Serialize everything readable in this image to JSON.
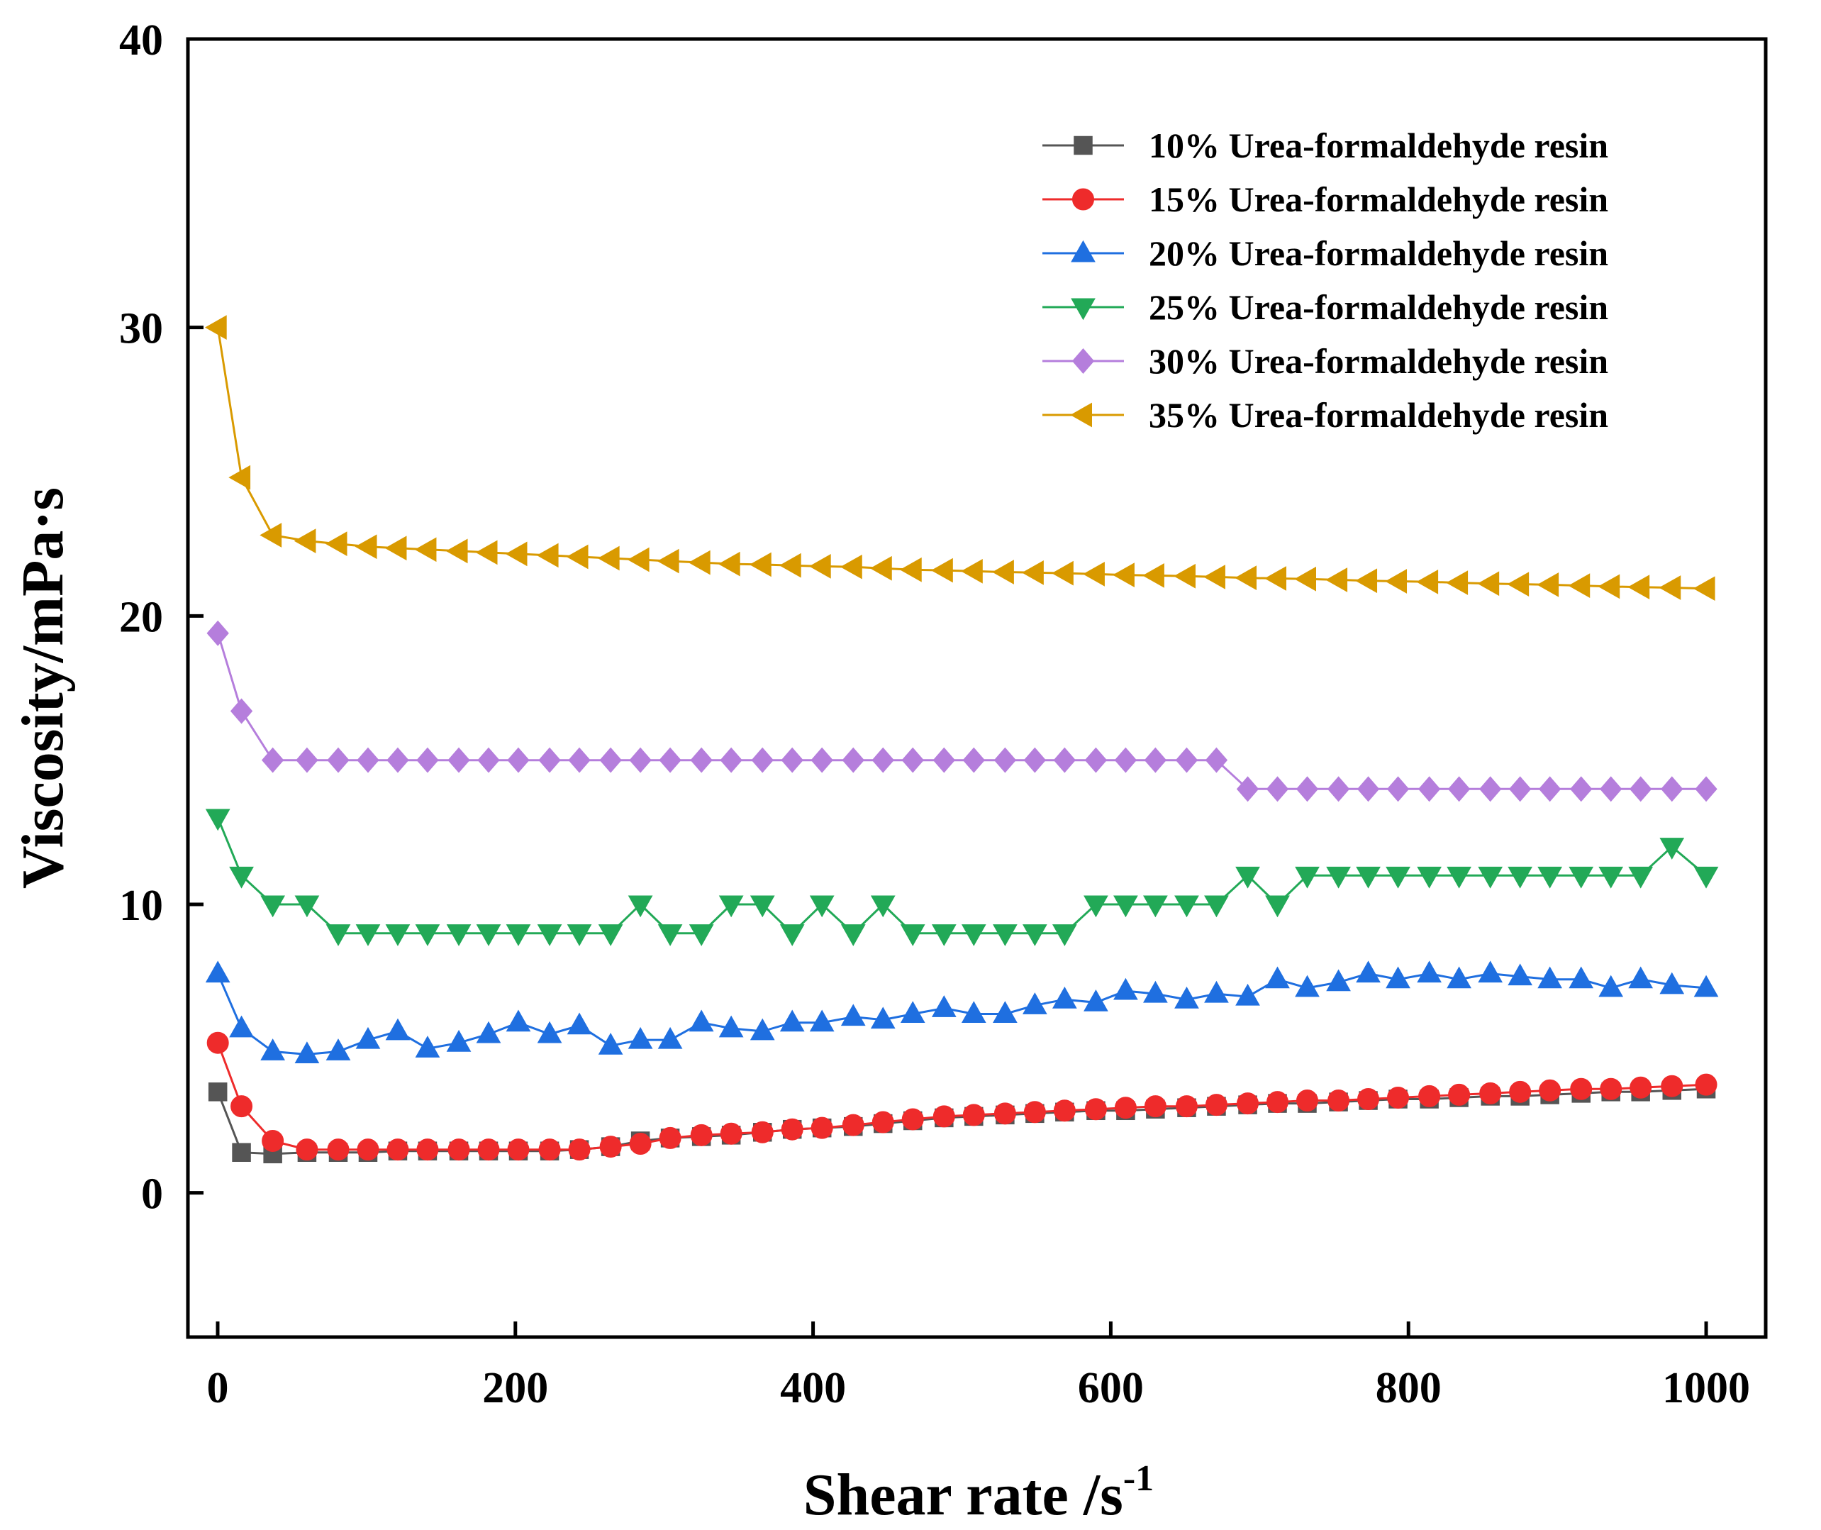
{
  "chart_data": {
    "type": "line",
    "title": "",
    "xlabel": "Shear rate /s",
    "xlabel_superscript": "-1",
    "ylabel": "Viscosity/mPa·s",
    "xlim": [
      -20,
      1040
    ],
    "ylim": [
      -5,
      40
    ],
    "xticks": [
      0,
      200,
      400,
      600,
      800,
      1000
    ],
    "xtick_labels": [
      "0",
      "200",
      "400",
      "600",
      "800",
      "1000"
    ],
    "yticks": [
      0,
      10,
      20,
      30,
      40
    ],
    "ytick_labels": [
      "0",
      "10",
      "20",
      "30",
      "40"
    ],
    "grid": false,
    "legend_position": "top-right",
    "x": [
      0.1,
      16,
      37,
      60,
      81,
      101,
      121,
      141,
      162,
      182,
      202,
      223,
      243,
      264,
      284,
      304,
      325,
      345,
      366,
      386,
      406,
      427,
      447,
      467,
      488,
      508,
      529,
      549,
      569,
      590,
      610,
      630,
      651,
      671,
      692,
      712,
      732,
      753,
      773,
      793,
      814,
      834,
      855,
      875,
      895,
      916,
      936,
      956,
      977,
      1000
    ],
    "series": [
      {
        "name": "10% Urea-formaldehyde resin",
        "color": "#555555",
        "marker": "square",
        "values": [
          3.5,
          1.4,
          1.35,
          1.4,
          1.4,
          1.4,
          1.45,
          1.45,
          1.45,
          1.45,
          1.45,
          1.45,
          1.5,
          1.6,
          1.8,
          1.9,
          1.95,
          2.0,
          2.1,
          2.2,
          2.25,
          2.3,
          2.4,
          2.5,
          2.6,
          2.65,
          2.7,
          2.75,
          2.8,
          2.85,
          2.85,
          2.9,
          2.95,
          3.0,
          3.05,
          3.1,
          3.1,
          3.15,
          3.2,
          3.25,
          3.25,
          3.3,
          3.35,
          3.35,
          3.4,
          3.45,
          3.5,
          3.5,
          3.55,
          3.6
        ]
      },
      {
        "name": "15% Urea-formaldehyde resin",
        "color": "#ee2b2b",
        "marker": "circle",
        "values": [
          5.2,
          3.0,
          1.8,
          1.5,
          1.5,
          1.5,
          1.5,
          1.5,
          1.5,
          1.5,
          1.5,
          1.5,
          1.5,
          1.6,
          1.7,
          1.9,
          2.0,
          2.05,
          2.1,
          2.2,
          2.25,
          2.35,
          2.45,
          2.55,
          2.65,
          2.7,
          2.75,
          2.8,
          2.85,
          2.9,
          2.95,
          3.0,
          3.0,
          3.05,
          3.1,
          3.15,
          3.2,
          3.2,
          3.25,
          3.3,
          3.35,
          3.4,
          3.45,
          3.5,
          3.55,
          3.6,
          3.6,
          3.65,
          3.7,
          3.75
        ]
      },
      {
        "name": "20% Urea-formaldehyde resin",
        "color": "#1f6fe0",
        "marker": "triangle-up",
        "values": [
          7.6,
          5.7,
          4.9,
          4.8,
          4.9,
          5.3,
          5.6,
          5.0,
          5.2,
          5.5,
          5.9,
          5.5,
          5.8,
          5.1,
          5.3,
          5.3,
          5.9,
          5.7,
          5.6,
          5.9,
          5.9,
          6.1,
          6.0,
          6.2,
          6.4,
          6.2,
          6.2,
          6.5,
          6.7,
          6.6,
          7.0,
          6.9,
          6.7,
          6.9,
          6.8,
          7.4,
          7.1,
          7.3,
          7.6,
          7.4,
          7.6,
          7.4,
          7.6,
          7.5,
          7.4,
          7.4,
          7.1,
          7.4,
          7.2,
          7.1
        ]
      },
      {
        "name": "25% Urea-formaldehyde resin",
        "color": "#22a957",
        "marker": "triangle-down",
        "values": [
          13.0,
          11.0,
          10.0,
          10.0,
          9.0,
          9.0,
          9.0,
          9.0,
          9.0,
          9.0,
          9.0,
          9.0,
          9.0,
          9.0,
          10.0,
          9.0,
          9.0,
          10.0,
          10.0,
          9.0,
          10.0,
          9.0,
          10.0,
          9.0,
          9.0,
          9.0,
          9.0,
          9.0,
          9.0,
          10.0,
          10.0,
          10.0,
          10.0,
          10.0,
          11.0,
          10.0,
          11.0,
          11.0,
          11.0,
          11.0,
          11.0,
          11.0,
          11.0,
          11.0,
          11.0,
          11.0,
          11.0,
          11.0,
          12.0,
          11.0
        ]
      },
      {
        "name": "30% Urea-formaldehyde resin",
        "color": "#b57edc",
        "marker": "diamond",
        "values": [
          19.4,
          16.7,
          15.0,
          15.0,
          15.0,
          15.0,
          15.0,
          15.0,
          15.0,
          15.0,
          15.0,
          15.0,
          15.0,
          15.0,
          15.0,
          15.0,
          15.0,
          15.0,
          15.0,
          15.0,
          15.0,
          15.0,
          15.0,
          15.0,
          15.0,
          15.0,
          15.0,
          15.0,
          15.0,
          15.0,
          15.0,
          15.0,
          15.0,
          15.0,
          14.0,
          14.0,
          14.0,
          14.0,
          14.0,
          14.0,
          14.0,
          14.0,
          14.0,
          14.0,
          14.0,
          14.0,
          14.0,
          14.0,
          14.0,
          14.0
        ]
      },
      {
        "name": "35% Urea-formaldehyde resin",
        "color": "#d99a00",
        "marker": "triangle-left",
        "values": [
          30.0,
          24.8,
          22.8,
          22.6,
          22.5,
          22.4,
          22.35,
          22.3,
          22.25,
          22.2,
          22.15,
          22.1,
          22.05,
          22.0,
          21.95,
          21.9,
          21.85,
          21.8,
          21.78,
          21.75,
          21.72,
          21.7,
          21.65,
          21.6,
          21.58,
          21.55,
          21.52,
          21.5,
          21.48,
          21.45,
          21.42,
          21.4,
          21.38,
          21.35,
          21.32,
          21.3,
          21.28,
          21.25,
          21.22,
          21.2,
          21.18,
          21.15,
          21.12,
          21.1,
          21.08,
          21.05,
          21.02,
          21.0,
          20.98,
          20.95
        ]
      }
    ]
  }
}
